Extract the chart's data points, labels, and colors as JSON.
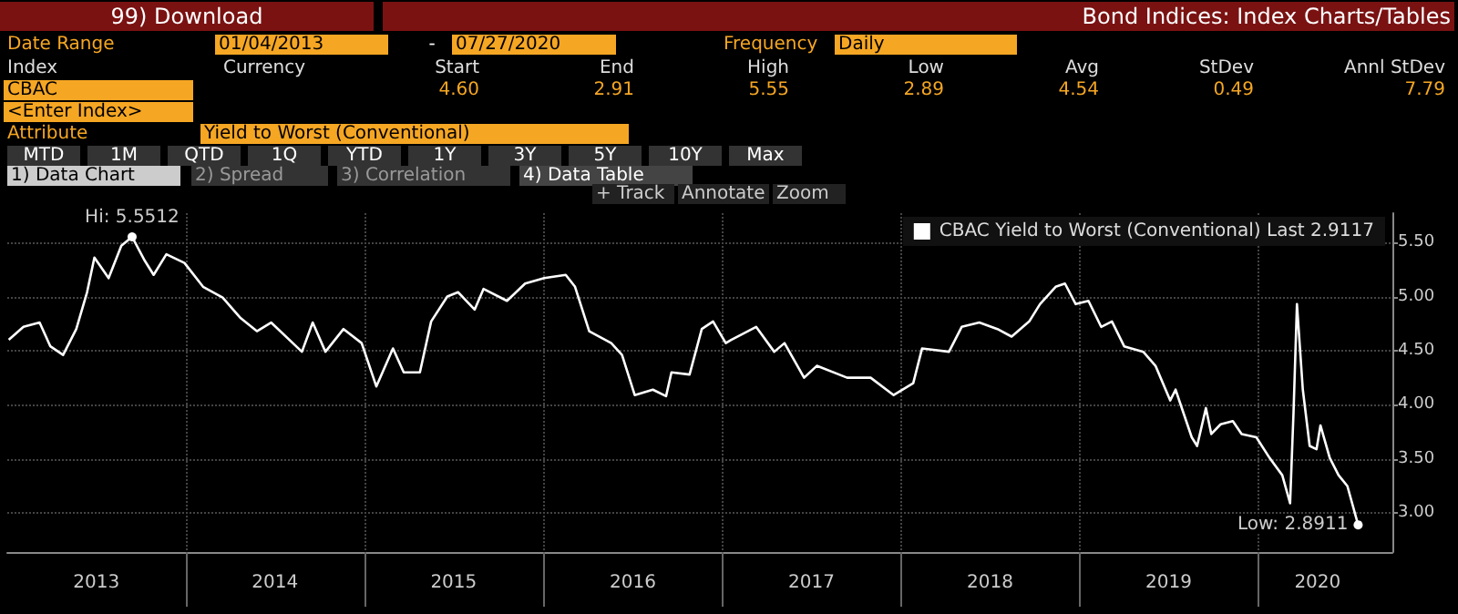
{
  "chart_data": {
    "type": "line",
    "annotations": [
      "99) Download",
      "Bond Indices: Index Charts/Tables",
      "Date Range",
      "01/04/2013",
      "-",
      "07/27/2020",
      "Frequency",
      "Daily",
      "Index",
      "Currency",
      "Start",
      "End",
      "High",
      "Low",
      "Avg",
      "StDev",
      "Annl StDev",
      "CBAC",
      "4.60",
      "2.91",
      "5.55",
      "2.89",
      "4.54",
      "0.49",
      "7.79",
      "<Enter Index>",
      "Attribute",
      "Yield to Worst (Conventional)",
      "MTD",
      "1M",
      "QTD",
      "1Q",
      "YTD",
      "1Y",
      "3Y",
      "5Y",
      "10Y",
      "Max",
      "1) Data Chart",
      "2) Spread",
      "3) Correlation",
      "4) Data Table",
      "+ Track",
      "Annotate",
      "Zoom",
      {
        "text": "Hi: 5.5512",
        "x": "2013-09-13",
        "y": 5.5512
      },
      {
        "text": "Low: 2.8911",
        "x": "2020-07-23",
        "y": 2.8911
      }
    ],
    "x": [
      "2013-01-04",
      "2013-02-03",
      "2013-03-08",
      "2013-03-30",
      "2013-04-25",
      "2013-05-22",
      "2013-06-13",
      "2013-06-28",
      "2013-07-27",
      "2013-08-22",
      "2013-09-13",
      "2013-10-09",
      "2013-10-27",
      "2013-11-22",
      "2013-12-29",
      "2014-02-05",
      "2014-03-17",
      "2014-04-23",
      "2014-05-26",
      "2014-06-24",
      "2014-08-26",
      "2014-09-17",
      "2014-10-13",
      "2014-11-19",
      "2014-12-26",
      "2015-01-25",
      "2015-02-28",
      "2015-03-22",
      "2015-04-24",
      "2015-05-17",
      "2015-06-19",
      "2015-07-11",
      "2015-08-14",
      "2015-09-01",
      "2015-10-19",
      "2015-11-25",
      "2016-01-03",
      "2016-02-16",
      "2016-03-06",
      "2016-04-04",
      "2016-05-19",
      "2016-06-10",
      "2016-07-06",
      "2016-08-12",
      "2016-09-08",
      "2016-09-19",
      "2016-10-26",
      "2016-11-20",
      "2016-12-13",
      "2017-01-08",
      "2017-01-19",
      "2017-03-11",
      "2017-04-17",
      "2017-05-08",
      "2017-06-17",
      "2017-07-13",
      "2017-09-13",
      "2017-10-31",
      "2017-12-17",
      "2018-01-26",
      "2018-02-13",
      "2018-04-09",
      "2018-05-05",
      "2018-06-10",
      "2018-07-17",
      "2018-08-15",
      "2018-09-20",
      "2018-10-12",
      "2018-11-13",
      "2018-12-02",
      "2018-12-24",
      "2019-01-19",
      "2019-02-14",
      "2019-03-08",
      "2019-04-02",
      "2019-05-11",
      "2019-06-05",
      "2019-07-05",
      "2019-07-16",
      "2019-08-18",
      "2019-08-29",
      "2019-09-16",
      "2019-09-27",
      "2019-10-16",
      "2019-11-10",
      "2019-11-28",
      "2019-12-28",
      "2020-01-24",
      "2020-02-19",
      "2020-03-06",
      "2020-03-13",
      "2020-03-20",
      "2020-04-01",
      "2020-04-15",
      "2020-04-29",
      "2020-05-07",
      "2020-05-26",
      "2020-06-13",
      "2020-07-01",
      "2020-07-23",
      "2020-07-27"
    ],
    "series": [
      {
        "name": "CBAC Yield to Worst (Conventional) Last 2.9117",
        "color": "#ffffff",
        "values": [
          4.6,
          4.72,
          4.76,
          4.54,
          4.46,
          4.7,
          5.04,
          5.36,
          5.17,
          5.47,
          5.5512,
          5.33,
          5.2,
          5.39,
          5.31,
          5.09,
          4.99,
          4.8,
          4.68,
          4.76,
          4.49,
          4.76,
          4.49,
          4.7,
          4.57,
          4.17,
          4.52,
          4.3,
          4.3,
          4.77,
          5.0,
          5.04,
          4.88,
          5.07,
          4.96,
          5.12,
          5.17,
          5.2,
          5.09,
          4.68,
          4.57,
          4.46,
          4.09,
          4.14,
          4.08,
          4.3,
          4.28,
          4.7,
          4.77,
          4.57,
          4.6,
          4.72,
          4.49,
          4.57,
          4.25,
          4.36,
          4.25,
          4.25,
          4.09,
          4.2,
          4.52,
          4.49,
          4.72,
          4.76,
          4.7,
          4.63,
          4.77,
          4.93,
          5.09,
          5.12,
          4.93,
          4.96,
          4.72,
          4.77,
          4.54,
          4.49,
          4.36,
          4.04,
          4.14,
          3.7,
          3.62,
          3.97,
          3.73,
          3.82,
          3.85,
          3.73,
          3.7,
          3.51,
          3.35,
          3.09,
          3.93,
          4.93,
          4.14,
          3.62,
          3.59,
          3.81,
          3.51,
          3.35,
          3.25,
          2.8911,
          2.9117
        ]
      }
    ],
    "xlim": [
      "2013-01-01",
      "2020-10-01"
    ],
    "xticks": [
      {
        "value": "2013-07-02",
        "label": "2013"
      },
      {
        "value": "2014-01-01",
        "label": null
      },
      {
        "value": "2014-07-02",
        "label": "2014"
      },
      {
        "value": "2015-01-01",
        "label": null
      },
      {
        "value": "2015-07-02",
        "label": "2015"
      },
      {
        "value": "2016-01-01",
        "label": null
      },
      {
        "value": "2016-07-02",
        "label": "2016"
      },
      {
        "value": "2017-01-01",
        "label": null
      },
      {
        "value": "2017-07-02",
        "label": "2017"
      },
      {
        "value": "2018-01-01",
        "label": null
      },
      {
        "value": "2018-07-02",
        "label": "2018"
      },
      {
        "value": "2019-01-01",
        "label": null
      },
      {
        "value": "2019-07-02",
        "label": "2019"
      },
      {
        "value": "2020-01-01",
        "label": null
      },
      {
        "value": "2020-05-01",
        "label": "2020"
      }
    ],
    "ylim": [
      2.64,
      5.77
    ],
    "yticks": [
      {
        "value": 3,
        "label": "3.00"
      },
      {
        "value": 3.5,
        "label": "3.50"
      },
      {
        "value": 4,
        "label": "4.00"
      },
      {
        "value": 4.5,
        "label": "4.50"
      },
      {
        "value": 5,
        "label": "5.00"
      },
      {
        "value": 5.5,
        "label": "5.50"
      }
    ],
    "grid": true,
    "legend": "top right",
    "marker": "none",
    "line_style": "solid"
  }
}
